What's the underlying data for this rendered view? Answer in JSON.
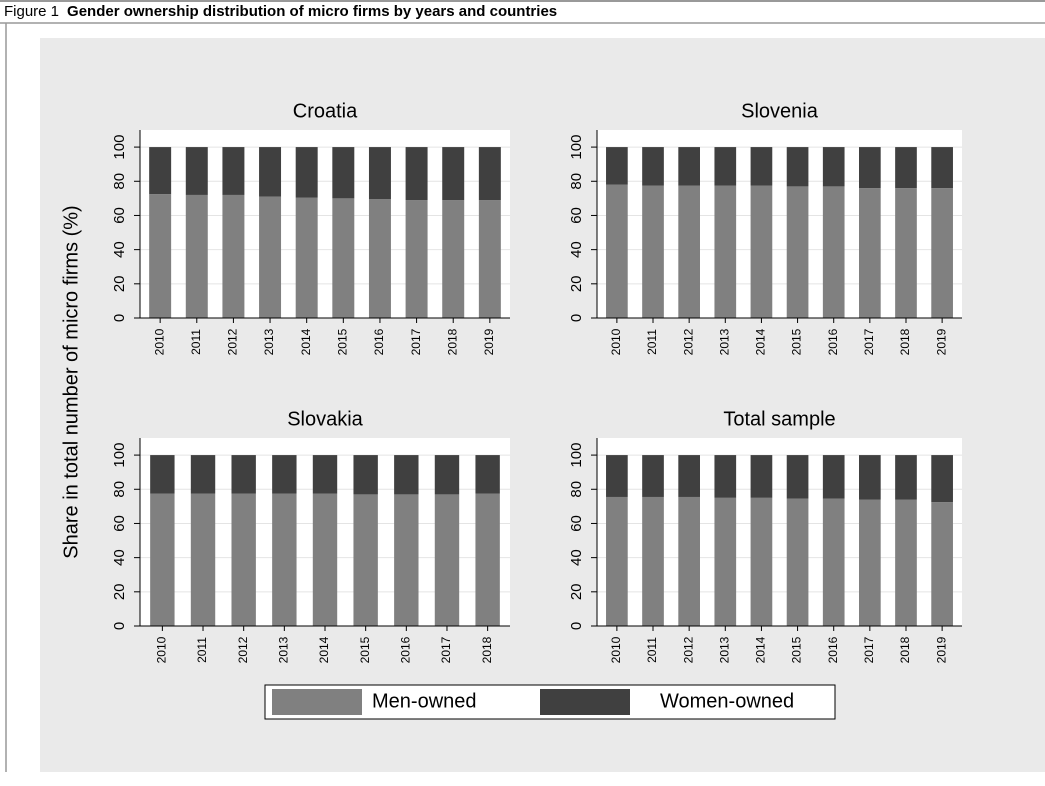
{
  "figure": {
    "label": "Figure 1",
    "title": "Gender ownership distribution of micro firms by years and countries"
  },
  "chart_data": [
    {
      "type": "stacked_bar",
      "title": "Croatia",
      "ylabel": "Share in total number of micro firms (%)",
      "categories": [
        "2010",
        "2011",
        "2012",
        "2013",
        "2014",
        "2015",
        "2016",
        "2017",
        "2018",
        "2019"
      ],
      "series": [
        {
          "name": "Men-owned",
          "color": "#808080",
          "values": [
            72.5,
            72,
            72,
            71,
            70.5,
            70,
            69.5,
            69,
            69,
            69
          ]
        },
        {
          "name": "Women-owned",
          "color": "#404040",
          "values": [
            27.5,
            28,
            28,
            29,
            29.5,
            30,
            30.5,
            31,
            31,
            31
          ]
        }
      ],
      "ylim": [
        0,
        110
      ],
      "yticks": [
        0,
        20,
        40,
        60,
        80,
        100
      ],
      "grid": true
    },
    {
      "type": "stacked_bar",
      "title": "Slovenia",
      "categories": [
        "2010",
        "2011",
        "2012",
        "2013",
        "2014",
        "2015",
        "2016",
        "2017",
        "2018",
        "2019"
      ],
      "series": [
        {
          "name": "Men-owned",
          "color": "#808080",
          "values": [
            78,
            77.5,
            77.5,
            77.5,
            77.5,
            77,
            77,
            76,
            76,
            76
          ]
        },
        {
          "name": "Women-owned",
          "color": "#404040",
          "values": [
            22,
            22.5,
            22.5,
            22.5,
            22.5,
            23,
            23,
            24,
            24,
            24
          ]
        }
      ],
      "ylim": [
        0,
        110
      ],
      "yticks": [
        0,
        20,
        40,
        60,
        80,
        100
      ],
      "grid": true
    },
    {
      "type": "stacked_bar",
      "title": "Slovakia",
      "categories": [
        "2010",
        "2011",
        "2012",
        "2013",
        "2014",
        "2015",
        "2016",
        "2017",
        "2018"
      ],
      "series": [
        {
          "name": "Men-owned",
          "color": "#808080",
          "values": [
            77.5,
            77.5,
            77.5,
            77.5,
            77.5,
            77,
            77,
            77,
            77.5
          ]
        },
        {
          "name": "Women-owned",
          "color": "#404040",
          "values": [
            22.5,
            22.5,
            22.5,
            22.5,
            22.5,
            23,
            23,
            23,
            22.5
          ]
        }
      ],
      "ylim": [
        0,
        110
      ],
      "yticks": [
        0,
        20,
        40,
        60,
        80,
        100
      ],
      "grid": true
    },
    {
      "type": "stacked_bar",
      "title": "Total sample",
      "categories": [
        "2010",
        "2011",
        "2012",
        "2013",
        "2014",
        "2015",
        "2016",
        "2017",
        "2018",
        "2019"
      ],
      "series": [
        {
          "name": "Men-owned",
          "color": "#808080",
          "values": [
            75.5,
            75.5,
            75.5,
            75,
            75,
            74.5,
            74.5,
            74,
            74,
            72.5
          ]
        },
        {
          "name": "Women-owned",
          "color": "#404040",
          "values": [
            24.5,
            24.5,
            24.5,
            25,
            25,
            25.5,
            25.5,
            26,
            26,
            27.5
          ]
        }
      ],
      "ylim": [
        0,
        110
      ],
      "yticks": [
        0,
        20,
        40,
        60,
        80,
        100
      ],
      "grid": true
    }
  ]
}
